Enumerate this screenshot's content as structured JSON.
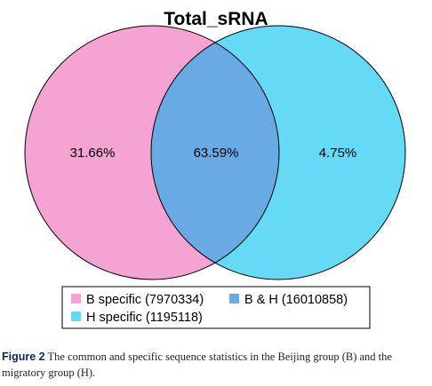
{
  "colors": {
    "b_specific": "#F5A3D2",
    "h_specific": "#64DAF7",
    "overlap": "#6AAAE4",
    "outline": "#000000"
  },
  "chart_data": {
    "type": "venn",
    "title": "Total_sRNA",
    "sets": [
      {
        "name": "B specific",
        "count": 7970334,
        "percent_label": "31.66%"
      },
      {
        "name": "B & H",
        "count": 16010858,
        "percent_label": "63.59%"
      },
      {
        "name": "H specific",
        "count": 1195118,
        "percent_label": "4.75%"
      }
    ]
  },
  "legend": {
    "items": [
      {
        "label": "B specific (7970334)"
      },
      {
        "label": "B & H (16010858)"
      },
      {
        "label": "H specific (1195118)"
      }
    ]
  },
  "caption": {
    "figure_label": "Figure 2",
    "text": " The common and specific sequence statistics in the Beijing group (B) and the migratory group (H)."
  }
}
